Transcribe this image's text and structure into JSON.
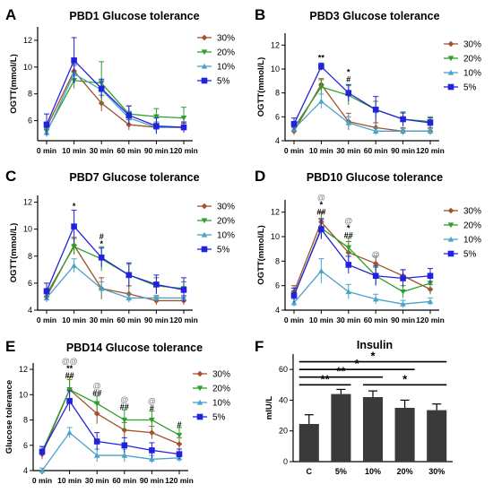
{
  "chart_data": [
    {
      "panel": "A",
      "type": "line",
      "title": "PBD1 Glucose tolerance",
      "ylabel": "OGTT(mmol/L)",
      "xlabel": "",
      "categories": [
        "0 min",
        "10 min",
        "30 min",
        "60 min",
        "90 min",
        "120 min"
      ],
      "ylim": [
        4.5,
        13
      ],
      "yticks": [
        6,
        8,
        10,
        12
      ],
      "legend_position": "right",
      "series": [
        {
          "name": "30%",
          "color": "#a0522d",
          "marker": "diamond",
          "values": [
            5.5,
            9.7,
            7.3,
            5.7,
            5.5,
            5.5
          ],
          "err": [
            0.4,
            0.5,
            0.6,
            0.4,
            0.4,
            0.3
          ]
        },
        {
          "name": "20%",
          "color": "#2ca02c",
          "marker": "triangle-down",
          "values": [
            5.2,
            9.0,
            8.8,
            6.5,
            6.3,
            6.2
          ],
          "err": [
            0.4,
            0.6,
            1.6,
            0.6,
            0.6,
            0.8
          ]
        },
        {
          "name": "10%",
          "color": "#4aa3c8",
          "marker": "triangle-up",
          "values": [
            5.1,
            9.5,
            8.3,
            6.2,
            5.5,
            5.5
          ],
          "err": [
            0.3,
            0.6,
            0.7,
            0.5,
            0.4,
            0.4
          ]
        },
        {
          "name": "5%",
          "color": "#2222dd",
          "marker": "square",
          "values": [
            5.7,
            10.5,
            8.4,
            6.4,
            5.6,
            5.5
          ],
          "err": [
            0.8,
            1.7,
            0.7,
            0.7,
            0.6,
            0.4
          ]
        }
      ],
      "annotations": []
    },
    {
      "panel": "B",
      "type": "line",
      "title": "PBD3 Glucose tolerance",
      "ylabel": "OGTT(mmol/L)",
      "xlabel": "",
      "categories": [
        "0 min",
        "10 min",
        "30 min",
        "60 min",
        "90 min",
        "120 min"
      ],
      "ylim": [
        4,
        13
      ],
      "yticks": [
        4,
        6,
        8,
        10,
        12
      ],
      "legend_position": "right",
      "series": [
        {
          "name": "30%",
          "color": "#a0522d",
          "marker": "diamond",
          "values": [
            4.8,
            8.7,
            5.6,
            5.1,
            4.8,
            4.8
          ],
          "err": [
            0.3,
            0.5,
            0.7,
            0.4,
            0.3,
            0.3
          ]
        },
        {
          "name": "20%",
          "color": "#2ca02c",
          "marker": "triangle-down",
          "values": [
            5.1,
            8.5,
            7.8,
            6.6,
            5.8,
            5.6
          ],
          "err": [
            0.4,
            0.6,
            0.8,
            0.7,
            0.5,
            0.4
          ]
        },
        {
          "name": "10%",
          "color": "#4aa3c8",
          "marker": "triangle-up",
          "values": [
            5.0,
            7.3,
            5.5,
            4.8,
            4.8,
            4.8
          ],
          "err": [
            0.3,
            0.6,
            0.5,
            0.3,
            0.2,
            0.2
          ]
        },
        {
          "name": "5%",
          "color": "#2222dd",
          "marker": "square",
          "values": [
            5.4,
            10.2,
            8.0,
            6.6,
            5.8,
            5.5
          ],
          "err": [
            0.5,
            0.3,
            0.7,
            1.1,
            0.6,
            0.4
          ]
        }
      ],
      "annotations": [
        {
          "x": "10 min",
          "y": 10.7,
          "lines": [
            {
              "text": "**",
              "color": "black"
            }
          ]
        },
        {
          "x": "30 min",
          "y": 8.9,
          "lines": [
            {
              "text": "*",
              "color": "black"
            },
            {
              "text": "#",
              "color": "black"
            }
          ]
        }
      ]
    },
    {
      "panel": "C",
      "type": "line",
      "title": "PBD7 Glucose tolerance",
      "ylabel": "OGTT(mmol/L)",
      "xlabel": "",
      "categories": [
        "0 min",
        "10 min",
        "30 min",
        "60 min",
        "90 min",
        "120 min"
      ],
      "ylim": [
        4,
        12.5
      ],
      "yticks": [
        4,
        6,
        8,
        10,
        12
      ],
      "legend_position": "right",
      "series": [
        {
          "name": "30%",
          "color": "#a0522d",
          "marker": "diamond",
          "values": [
            5.0,
            8.8,
            5.6,
            5.2,
            4.7,
            4.7
          ],
          "err": [
            0.3,
            0.6,
            0.8,
            0.6,
            0.3,
            0.3
          ]
        },
        {
          "name": "20%",
          "color": "#2ca02c",
          "marker": "triangle-down",
          "values": [
            5.2,
            8.7,
            7.8,
            6.6,
            5.8,
            5.6
          ],
          "err": [
            0.4,
            0.6,
            0.9,
            0.8,
            0.6,
            0.5
          ]
        },
        {
          "name": "10%",
          "color": "#4aa3c8",
          "marker": "triangle-up",
          "values": [
            4.9,
            7.3,
            5.6,
            4.9,
            4.9,
            4.9
          ],
          "err": [
            0.3,
            0.5,
            0.5,
            0.3,
            0.2,
            0.2
          ]
        },
        {
          "name": "5%",
          "color": "#2222dd",
          "marker": "square",
          "values": [
            5.4,
            10.2,
            7.9,
            6.6,
            5.9,
            5.5
          ],
          "err": [
            0.6,
            1.2,
            0.7,
            0.9,
            0.7,
            0.9
          ]
        }
      ],
      "annotations": [
        {
          "x": "10 min",
          "y": 11.5,
          "lines": [
            {
              "text": "*",
              "color": "black"
            }
          ]
        },
        {
          "x": "30 min",
          "y": 8.7,
          "lines": [
            {
              "text": "#",
              "color": "black"
            },
            {
              "text": "*",
              "color": "black"
            }
          ]
        }
      ]
    },
    {
      "panel": "D",
      "type": "line",
      "title": "PBD10 Glucose tolerance",
      "ylabel": "OGTT(mmol/L)",
      "xlabel": "",
      "categories": [
        "0 min",
        "10 min",
        "30 min",
        "60 min",
        "90 min",
        "120 min"
      ],
      "ylim": [
        4,
        13
      ],
      "yticks": [
        4,
        6,
        8,
        10,
        12
      ],
      "legend_position": "right",
      "series": [
        {
          "name": "30%",
          "color": "#a0522d",
          "marker": "diamond",
          "values": [
            5.5,
            11.2,
            8.7,
            7.8,
            6.8,
            5.7
          ],
          "err": [
            0.5,
            0.8,
            0.9,
            0.6,
            0.5,
            0.4
          ]
        },
        {
          "name": "20%",
          "color": "#2ca02c",
          "marker": "triangle-down",
          "values": [
            5.2,
            10.7,
            9.1,
            6.8,
            5.5,
            6.2
          ],
          "err": [
            0.4,
            0.8,
            0.8,
            0.7,
            0.5,
            0.5
          ]
        },
        {
          "name": "10%",
          "color": "#4aa3c8",
          "marker": "triangle-up",
          "values": [
            4.6,
            7.2,
            5.5,
            4.9,
            4.5,
            4.7
          ],
          "err": [
            0.3,
            1.0,
            0.6,
            0.4,
            0.3,
            0.3
          ]
        },
        {
          "name": "5%",
          "color": "#2222dd",
          "marker": "square",
          "values": [
            5.2,
            10.6,
            7.7,
            6.8,
            6.6,
            6.8
          ],
          "err": [
            0.6,
            0.8,
            0.7,
            0.8,
            0.7,
            0.6
          ]
        }
      ],
      "annotations": [
        {
          "x": "10 min",
          "y": 11.8,
          "lines": [
            {
              "text": "@",
              "color": "gray"
            },
            {
              "text": "*",
              "color": "black"
            },
            {
              "text": "##",
              "color": "black"
            }
          ]
        },
        {
          "x": "30 min",
          "y": 9.9,
          "lines": [
            {
              "text": "@",
              "color": "gray"
            },
            {
              "text": "*",
              "color": "black"
            },
            {
              "text": "##",
              "color": "black"
            }
          ]
        },
        {
          "x": "60 min",
          "y": 8.3,
          "lines": [
            {
              "text": "@",
              "color": "gray"
            }
          ]
        }
      ]
    },
    {
      "panel": "E",
      "type": "line",
      "title": "PBD14 Glucose tolerance",
      "ylabel": "Glucose tolerance",
      "xlabel": "",
      "categories": [
        "0 min",
        "10 min",
        "30 min",
        "60 min",
        "90 min",
        "120 min"
      ],
      "ylim": [
        4,
        12.5
      ],
      "yticks": [
        4,
        6,
        8,
        10,
        12
      ],
      "legend_position": "right",
      "series": [
        {
          "name": "30%",
          "color": "#a0522d",
          "marker": "diamond",
          "values": [
            5.3,
            10.4,
            8.5,
            7.2,
            7.0,
            6.1
          ],
          "err": [
            0.4,
            1.0,
            0.8,
            0.6,
            0.5,
            0.5
          ]
        },
        {
          "name": "20%",
          "color": "#2ca02c",
          "marker": "triangle-down",
          "values": [
            5.5,
            10.4,
            9.3,
            8.0,
            8.0,
            6.8
          ],
          "err": [
            0.4,
            0.8,
            0.6,
            0.8,
            0.7,
            0.6
          ]
        },
        {
          "name": "10%",
          "color": "#4aa3c8",
          "marker": "triangle-up",
          "values": [
            4.0,
            7.0,
            5.2,
            5.2,
            4.9,
            5.0
          ],
          "err": [
            0.2,
            0.4,
            0.5,
            0.5,
            0.3,
            0.3
          ]
        },
        {
          "name": "5%",
          "color": "#2222dd",
          "marker": "square",
          "values": [
            5.5,
            9.5,
            6.3,
            6.0,
            5.6,
            5.3
          ],
          "err": [
            0.4,
            0.8,
            0.7,
            0.6,
            0.6,
            0.4
          ]
        }
      ],
      "annotations": [
        {
          "x": "10 min",
          "y": 11.3,
          "lines": [
            {
              "text": "@@",
              "color": "gray"
            },
            {
              "text": "**",
              "color": "black"
            },
            {
              "text": "##",
              "color": "black"
            }
          ]
        },
        {
          "x": "30 min",
          "y": 9.9,
          "lines": [
            {
              "text": "@",
              "color": "gray"
            },
            {
              "text": "##",
              "color": "black"
            }
          ]
        },
        {
          "x": "60 min",
          "y": 8.8,
          "lines": [
            {
              "text": "@",
              "color": "gray"
            },
            {
              "text": "##",
              "color": "black"
            }
          ]
        },
        {
          "x": "90 min",
          "y": 8.7,
          "lines": [
            {
              "text": "@",
              "color": "gray"
            },
            {
              "text": "#",
              "color": "black"
            }
          ]
        },
        {
          "x": "120 min",
          "y": 7.4,
          "lines": [
            {
              "text": "#",
              "color": "black"
            }
          ]
        }
      ]
    },
    {
      "panel": "F",
      "type": "bar",
      "title": "Insulin",
      "ylabel": "mIU/L",
      "xlabel": "",
      "categories": [
        "C",
        "5%",
        "10%",
        "20%",
        "30%"
      ],
      "values": [
        24.5,
        44,
        42,
        35,
        33.5
      ],
      "err": [
        6,
        3,
        4,
        5,
        4
      ],
      "ylim": [
        0,
        70
      ],
      "yticks": [
        0,
        20,
        40,
        60
      ],
      "bar_color": "#3a3a3a",
      "significance": [
        {
          "from": "C",
          "to": "5%",
          "label": "**",
          "y": 50
        },
        {
          "from": "C",
          "to": "10%",
          "label": "**",
          "y": 55
        },
        {
          "from": "C",
          "to": "20%",
          "label": "*",
          "y": 60
        },
        {
          "from": "C",
          "to": "30%",
          "label": "*",
          "y": 65
        },
        {
          "from": "10%",
          "to": "30%",
          "label": "*",
          "y": 50
        }
      ]
    }
  ]
}
